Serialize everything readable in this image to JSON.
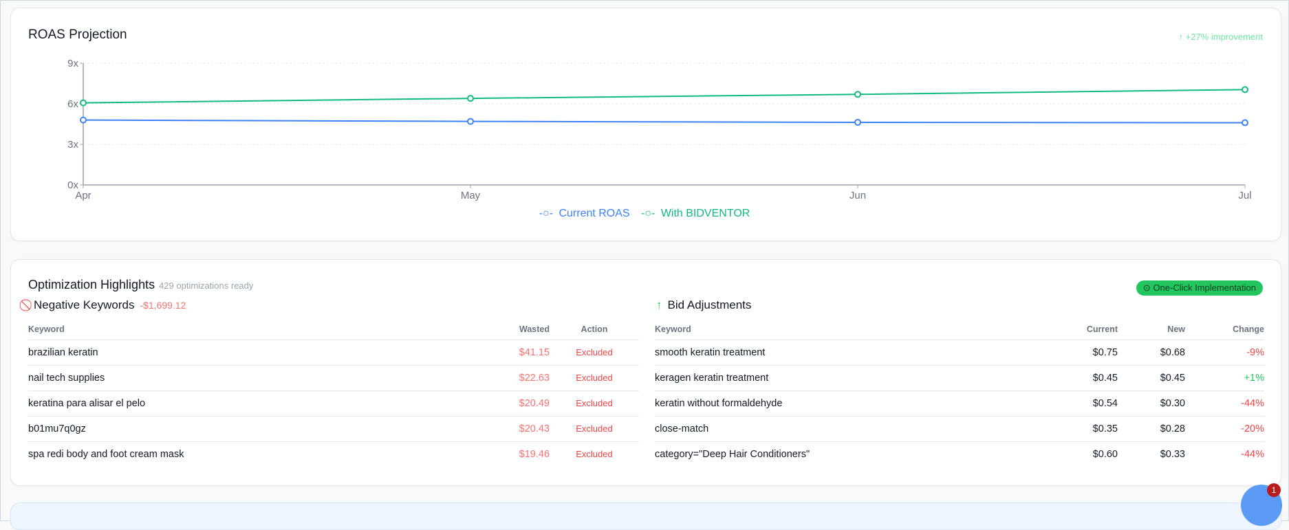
{
  "roas": {
    "title": "ROAS Projection",
    "improvement": "+27% improvement"
  },
  "chart_data": {
    "type": "line",
    "title": "ROAS Projection",
    "categories": [
      "Apr",
      "May",
      "Jun",
      "Jul"
    ],
    "yticks": [
      "0x",
      "3x",
      "6x",
      "9x"
    ],
    "ylim": [
      0,
      9
    ],
    "grid": true,
    "legend_position": "bottom",
    "series": [
      {
        "name": "Current ROAS",
        "color": "#3b82f6",
        "values": [
          4.8,
          4.7,
          4.63,
          4.6
        ]
      },
      {
        "name": "With BIDVENTOR",
        "color": "#10b981",
        "values": [
          6.07,
          6.4,
          6.7,
          7.05
        ]
      }
    ]
  },
  "opt": {
    "title": "Optimization Highlights",
    "subtitle": "429 optimizations ready",
    "badge": "One-Click Implementation",
    "neg": {
      "title": "Negative Keywords",
      "total": "-$1,699.12",
      "headers": [
        "Keyword",
        "Wasted",
        "Action"
      ],
      "rows": [
        [
          "brazilian keratin",
          "$41.15",
          "Excluded"
        ],
        [
          "nail tech supplies",
          "$22.63",
          "Excluded"
        ],
        [
          "keratina para alisar el pelo",
          "$20.49",
          "Excluded"
        ],
        [
          "b01mu7q0gz",
          "$20.43",
          "Excluded"
        ],
        [
          "spa redi body and foot cream mask",
          "$19.46",
          "Excluded"
        ]
      ]
    },
    "bid": {
      "title": "Bid Adjustments",
      "headers": [
        "Keyword",
        "Current",
        "New",
        "Change"
      ],
      "rows": [
        [
          "smooth keratin treatment",
          "$0.75",
          "$0.68",
          "-9%"
        ],
        [
          "keragen keratin treatment",
          "$0.45",
          "$0.45",
          "+1%"
        ],
        [
          "keratin without formaldehyde",
          "$0.54",
          "$0.30",
          "-44%"
        ],
        [
          "close-match",
          "$0.35",
          "$0.28",
          "-20%"
        ],
        [
          "category=\"Deep Hair Conditioners\"",
          "$0.60",
          "$0.33",
          "-44%"
        ]
      ]
    }
  },
  "chat": {
    "badge": "1"
  }
}
